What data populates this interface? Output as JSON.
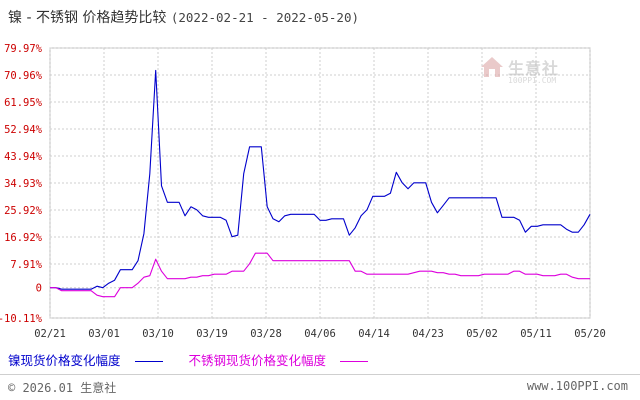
{
  "header": {
    "title": "镍 - 不锈钢 价格趋势比较",
    "date_range": "(2022-02-21 - 2022-05-20)"
  },
  "watermark": {
    "text": "生意社",
    "sub": "100PPI.COM"
  },
  "legend": {
    "items": [
      {
        "label": "镍现货价格变化幅度",
        "color": "#0000cc"
      },
      {
        "label": "不锈钢现货价格变化幅度",
        "color": "#dd00dd"
      }
    ]
  },
  "footer": {
    "copyright": "© 2026.01 生意社",
    "site": "www.100PPI.com"
  },
  "chart_data": {
    "type": "line",
    "title": "镍 - 不锈钢 价格趋势比较",
    "xlabel": "",
    "ylabel": "",
    "ylim": [
      -10.11,
      79.97
    ],
    "yticks": [
      -10.11,
      0,
      7.91,
      16.92,
      25.92,
      34.93,
      43.94,
      52.94,
      61.95,
      70.96,
      79.97
    ],
    "ytick_labels": [
      "-10.11%",
      "0",
      "7.91%",
      "16.92%",
      "25.92%",
      "34.93%",
      "43.94%",
      "52.94%",
      "61.95%",
      "70.96%",
      "79.97%"
    ],
    "xticks": [
      "02/21",
      "03/01",
      "03/10",
      "03/19",
      "03/28",
      "04/06",
      "04/14",
      "04/23",
      "05/02",
      "05/11",
      "05/20"
    ],
    "grid": true,
    "series": [
      {
        "name": "镍现货价格变化幅度",
        "color": "#0000cc",
        "values": [
          0,
          0,
          -0.5,
          -0.5,
          -0.5,
          -0.5,
          -0.5,
          -0.5,
          0.5,
          0,
          1.5,
          2.5,
          6,
          6,
          6,
          9,
          18,
          38,
          72.5,
          34,
          28.5,
          28.5,
          28.5,
          24,
          27,
          26,
          24,
          23.5,
          23.5,
          23.5,
          22.5,
          17,
          17.5,
          38,
          47,
          47,
          47,
          27,
          23,
          22,
          24,
          24.5,
          24.5,
          24.5,
          24.5,
          24.5,
          22.5,
          22.5,
          23,
          23,
          23,
          17.5,
          20,
          24,
          26,
          30.5,
          30.5,
          30.5,
          31.5,
          38.5,
          35,
          33,
          35,
          35,
          35,
          28.5,
          25,
          27.5,
          30,
          30,
          30,
          30,
          30,
          30,
          30,
          30,
          30,
          23.5,
          23.5,
          23.5,
          22.5,
          18.5,
          20.5,
          20.5,
          21,
          21,
          21,
          21,
          19.5,
          18.5,
          18.5,
          21,
          24.5
        ]
      },
      {
        "name": "不锈钢现货价格变化幅度",
        "color": "#dd00dd",
        "values": [
          0,
          0,
          -1,
          -1,
          -1,
          -1,
          -1,
          -1,
          -2.5,
          -3,
          -3,
          -3,
          0,
          0,
          0,
          1.5,
          3.5,
          4,
          9.5,
          5.5,
          3,
          3,
          3,
          3,
          3.5,
          3.5,
          4,
          4,
          4.5,
          4.5,
          4.5,
          5.5,
          5.5,
          5.5,
          8,
          11.5,
          11.5,
          11.5,
          9,
          9,
          9,
          9,
          9,
          9,
          9,
          9,
          9,
          9,
          9,
          9,
          9,
          9,
          5.5,
          5.5,
          4.5,
          4.5,
          4.5,
          4.5,
          4.5,
          4.5,
          4.5,
          4.5,
          5,
          5.5,
          5.5,
          5.5,
          5,
          5,
          4.5,
          4.5,
          4,
          4,
          4,
          4,
          4.5,
          4.5,
          4.5,
          4.5,
          4.5,
          5.5,
          5.5,
          4.5,
          4.5,
          4.5,
          4,
          4,
          4,
          4.5,
          4.5,
          3.5,
          3,
          3,
          3
        ]
      }
    ]
  }
}
